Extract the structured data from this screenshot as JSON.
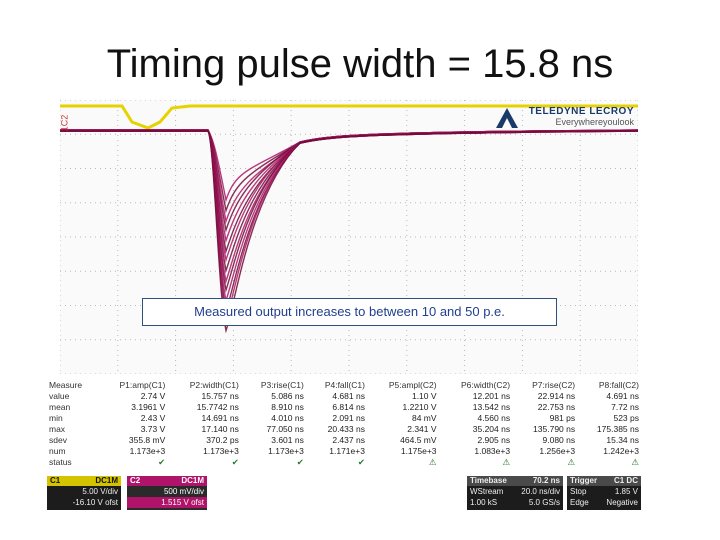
{
  "slide": {
    "title": "Timing pulse width = 15.8 ns",
    "callout": "Measured output increases to between 10 and 50 p.e."
  },
  "scope": {
    "brand": "TELEDYNE LECROY",
    "brand_sub": "Everywhereyoulook",
    "channel_label": "1C2",
    "colors": {
      "ch1": "#e6d200",
      "ch2": "#b0146a",
      "grid": "#b8b8b8"
    },
    "measure_headers": [
      "Measure",
      "P1:amp(C1)",
      "P2:width(C1)",
      "P3:rise(C1)",
      "P4:fall(C1)",
      "P5:ampl(C2)",
      "P6:width(C2)",
      "P7:rise(C2)",
      "P8:fall(C2)"
    ],
    "measure_rows": [
      {
        "label": "value",
        "cells": [
          "2.74 V",
          "15.757 ns",
          "5.086 ns",
          "4.681 ns",
          "1.10 V",
          "12.201 ns",
          "22.914 ns",
          "4.691 ns"
        ]
      },
      {
        "label": "mean",
        "cells": [
          "3.1961 V",
          "15.7742 ns",
          "8.910 ns",
          "6.814 ns",
          "1.2210 V",
          "13.542 ns",
          "22.753 ns",
          "7.72 ns"
        ]
      },
      {
        "label": "min",
        "cells": [
          "2.43 V",
          "14.691 ns",
          "4.010 ns",
          "2.091 ns",
          "84 mV",
          "4.560 ns",
          "981 ps",
          "523 ps"
        ]
      },
      {
        "label": "max",
        "cells": [
          "3.73 V",
          "17.140 ns",
          "77.050 ns",
          "20.433 ns",
          "2.341 V",
          "35.204 ns",
          "135.790 ns",
          "175.385 ns"
        ]
      },
      {
        "label": "sdev",
        "cells": [
          "355.8 mV",
          "370.2 ps",
          "3.601 ns",
          "2.437 ns",
          "464.5 mV",
          "2.905 ns",
          "9.080 ns",
          "15.34 ns"
        ]
      },
      {
        "label": "num",
        "cells": [
          "1.173e+3",
          "1.173e+3",
          "1.173e+3",
          "1.171e+3",
          "1.175e+3",
          "1.083e+3",
          "1.256e+3",
          "1.242e+3"
        ]
      },
      {
        "label": "status",
        "cells": [
          "✔",
          "✔",
          "✔",
          "✔",
          "⚠",
          "⚠",
          "⚠",
          "⚠"
        ]
      }
    ],
    "c1": {
      "name": "C1",
      "coupling": "DC1M",
      "vdiv": "5.00 V/div",
      "offset": "-16.10 V ofst"
    },
    "c2": {
      "name": "C2",
      "coupling": "DC1M",
      "vdiv": "500 mV/div",
      "offset": "1.515 V ofst"
    },
    "timebase": {
      "title": "Timebase",
      "delay": "70.2 ns",
      "mode": "WStream",
      "tdiv": "20.0 ns/div",
      "samples": "1.00 kS",
      "rate": "5.0 GS/s"
    },
    "trigger": {
      "title": "Trigger",
      "tag": "C1 DC",
      "mode": "Stop",
      "level": "1.85 V",
      "type": "Edge",
      "slope": "Negative"
    }
  }
}
